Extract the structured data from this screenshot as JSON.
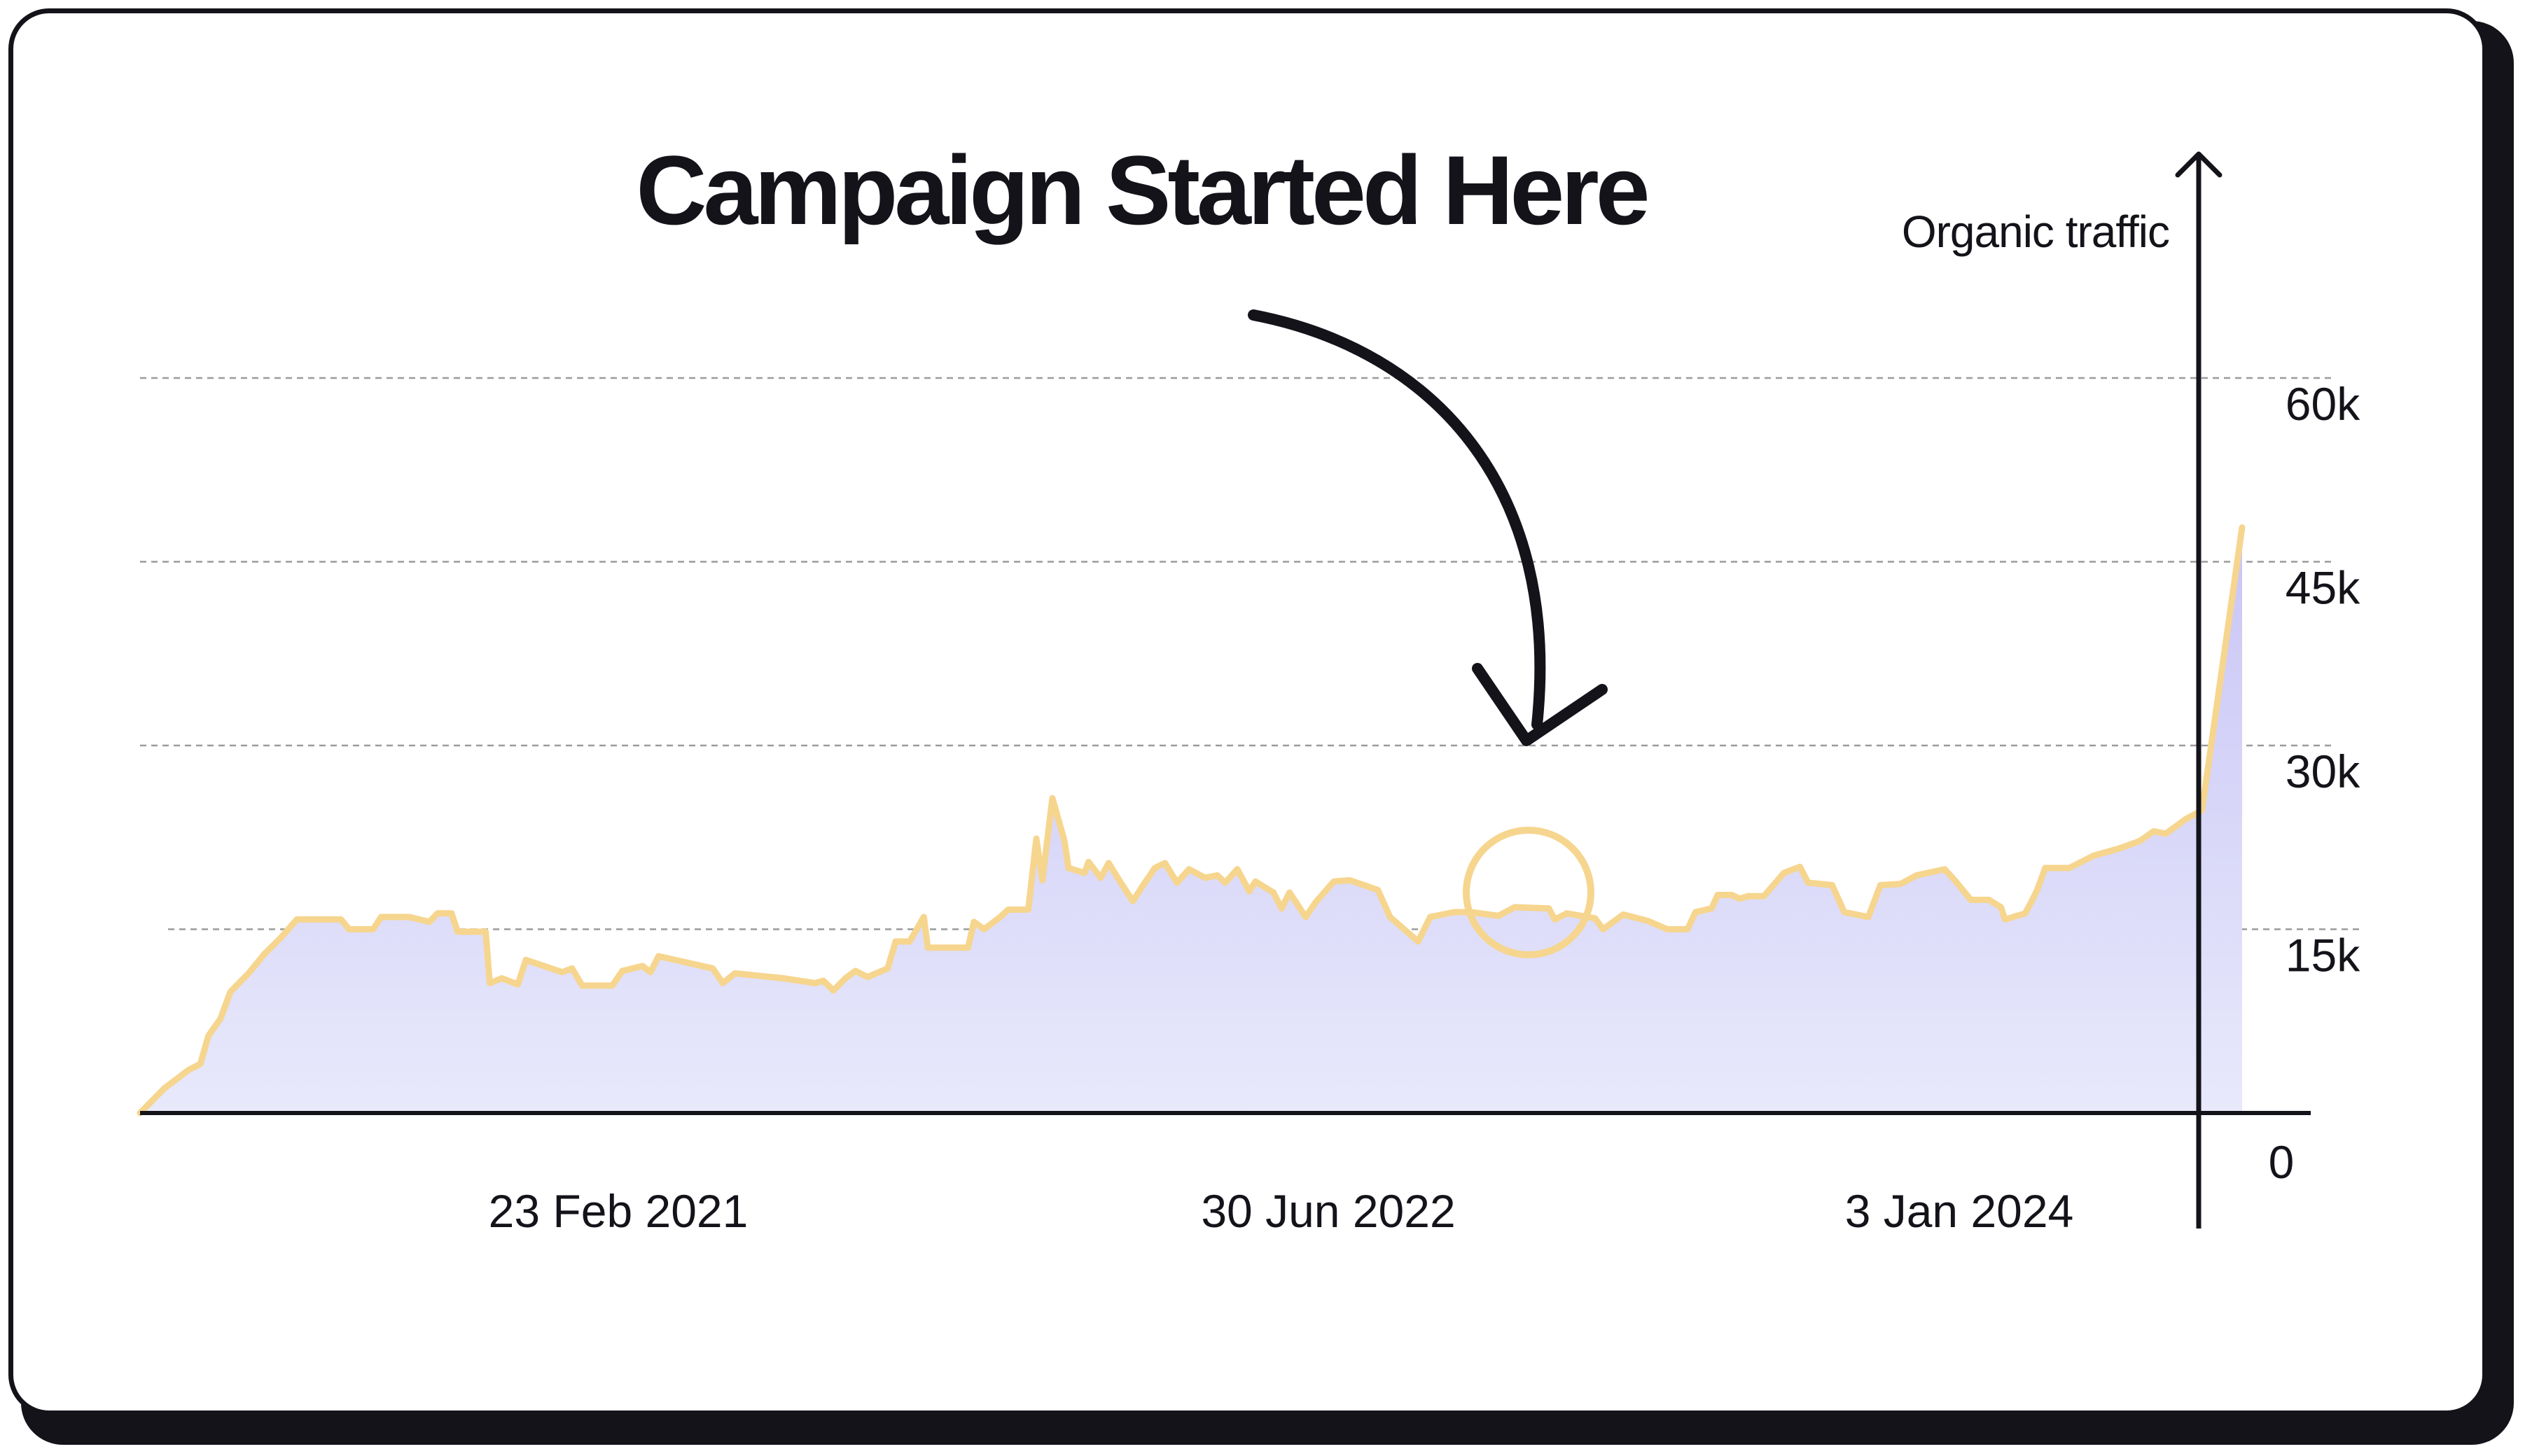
{
  "chart_data": {
    "type": "area",
    "title": "Campaign Started Here",
    "ylabel": "Organic traffic",
    "xlabel": "",
    "ylim": [
      0,
      60000
    ],
    "y_ticks": [
      {
        "value": 0,
        "label": "0"
      },
      {
        "value": 15000,
        "label": "15k"
      },
      {
        "value": 30000,
        "label": "30k"
      },
      {
        "value": 45000,
        "label": "45k"
      },
      {
        "value": 60000,
        "label": "60k"
      }
    ],
    "x_ticks": [
      "23 Feb 2021",
      "30 Jun 2022",
      "3 Jan 2024"
    ],
    "grid": true,
    "annotation": {
      "text": "Campaign Started Here",
      "target": "30 Jun 2022",
      "marker": "circle"
    },
    "colors": {
      "line": "#f6d58e",
      "fill_top": "#c9c5f6",
      "fill_bottom": "#e8e9fb",
      "ink": "#14131a",
      "grid": "#9b9b9b"
    },
    "series": [
      {
        "values": [
          [
            0.0,
            0
          ],
          [
            0.012,
            2000
          ],
          [
            0.024,
            3500
          ],
          [
            0.03,
            4000
          ],
          [
            0.034,
            6300
          ],
          [
            0.04,
            7700
          ],
          [
            0.045,
            9900
          ],
          [
            0.054,
            11400
          ],
          [
            0.062,
            13000
          ],
          [
            0.07,
            14300
          ],
          [
            0.078,
            15800
          ],
          [
            0.084,
            15800
          ],
          [
            0.09,
            15800
          ],
          [
            0.1,
            15800
          ],
          [
            0.104,
            15000
          ],
          [
            0.116,
            15000
          ],
          [
            0.12,
            16000
          ],
          [
            0.134,
            16000
          ],
          [
            0.144,
            15600
          ],
          [
            0.148,
            16300
          ],
          [
            0.155,
            16300
          ],
          [
            0.158,
            14800
          ],
          [
            0.172,
            14800
          ],
          [
            0.174,
            10600
          ],
          [
            0.18,
            11000
          ],
          [
            0.188,
            10500
          ],
          [
            0.192,
            12500
          ],
          [
            0.21,
            11500
          ],
          [
            0.215,
            11800
          ],
          [
            0.22,
            10400
          ],
          [
            0.235,
            10400
          ],
          [
            0.24,
            11600
          ],
          [
            0.25,
            12000
          ],
          [
            0.254,
            11500
          ],
          [
            0.258,
            12800
          ],
          [
            0.285,
            11800
          ],
          [
            0.29,
            10600
          ],
          [
            0.296,
            11400
          ],
          [
            0.32,
            11000
          ],
          [
            0.336,
            10600
          ],
          [
            0.34,
            10800
          ],
          [
            0.345,
            10000
          ],
          [
            0.351,
            11000
          ],
          [
            0.356,
            11600
          ],
          [
            0.362,
            11100
          ],
          [
            0.372,
            11800
          ],
          [
            0.376,
            14000
          ],
          [
            0.383,
            14000
          ],
          [
            0.39,
            16000
          ],
          [
            0.392,
            13500
          ],
          [
            0.412,
            13500
          ],
          [
            0.415,
            15600
          ],
          [
            0.42,
            15000
          ],
          [
            0.428,
            16000
          ],
          [
            0.432,
            16600
          ],
          [
            0.442,
            16600
          ],
          [
            0.446,
            22400
          ],
          [
            0.449,
            19000
          ],
          [
            0.454,
            25700
          ],
          [
            0.46,
            22200
          ],
          [
            0.462,
            20000
          ],
          [
            0.47,
            19600
          ],
          [
            0.472,
            20500
          ],
          [
            0.478,
            19200
          ],
          [
            0.482,
            20400
          ],
          [
            0.488,
            18800
          ],
          [
            0.494,
            17300
          ],
          [
            0.5,
            18800
          ],
          [
            0.505,
            20000
          ],
          [
            0.51,
            20400
          ],
          [
            0.516,
            18800
          ],
          [
            0.522,
            19900
          ],
          [
            0.53,
            19200
          ],
          [
            0.536,
            19400
          ],
          [
            0.54,
            18800
          ],
          [
            0.546,
            19900
          ],
          [
            0.552,
            18100
          ],
          [
            0.555,
            18900
          ],
          [
            0.564,
            18000
          ],
          [
            0.568,
            16700
          ],
          [
            0.572,
            18000
          ],
          [
            0.58,
            16000
          ],
          [
            0.585,
            17200
          ],
          [
            0.594,
            18900
          ],
          [
            0.602,
            19000
          ],
          [
            0.616,
            18200
          ],
          [
            0.622,
            16000
          ],
          [
            0.636,
            14000
          ],
          [
            0.642,
            16000
          ],
          [
            0.654,
            16400
          ],
          [
            0.662,
            16400
          ],
          [
            0.676,
            16100
          ],
          [
            0.684,
            16800
          ],
          [
            0.701,
            16700
          ],
          [
            0.704,
            15800
          ],
          [
            0.71,
            16300
          ],
          [
            0.724,
            15900
          ],
          [
            0.728,
            15000
          ],
          [
            0.738,
            16200
          ],
          [
            0.75,
            15700
          ],
          [
            0.76,
            15000
          ],
          [
            0.77,
            15000
          ],
          [
            0.774,
            16400
          ],
          [
            0.782,
            16700
          ],
          [
            0.785,
            17800
          ],
          [
            0.792,
            17800
          ],
          [
            0.796,
            17500
          ],
          [
            0.8,
            17700
          ],
          [
            0.808,
            17700
          ],
          [
            0.818,
            19600
          ],
          [
            0.826,
            20100
          ],
          [
            0.83,
            18800
          ],
          [
            0.842,
            18600
          ],
          [
            0.848,
            16400
          ],
          [
            0.86,
            16000
          ],
          [
            0.866,
            18600
          ],
          [
            0.876,
            18700
          ],
          [
            0.884,
            19400
          ],
          [
            0.898,
            19900
          ],
          [
            0.903,
            19000
          ],
          [
            0.911,
            17400
          ],
          [
            0.92,
            17400
          ],
          [
            0.926,
            16800
          ],
          [
            0.928,
            15800
          ],
          [
            0.938,
            16300
          ],
          [
            0.941,
            17200
          ],
          [
            0.944,
            18200
          ],
          [
            0.948,
            20000
          ],
          [
            0.96,
            20000
          ],
          [
            0.972,
            21000
          ],
          [
            0.985,
            21600
          ],
          [
            0.995,
            22200
          ],
          [
            1.002,
            23000
          ],
          [
            1.008,
            22800
          ],
          [
            1.018,
            24000
          ],
          [
            1.026,
            24700
          ],
          [
            1.046,
            47800
          ]
        ]
      }
    ]
  }
}
